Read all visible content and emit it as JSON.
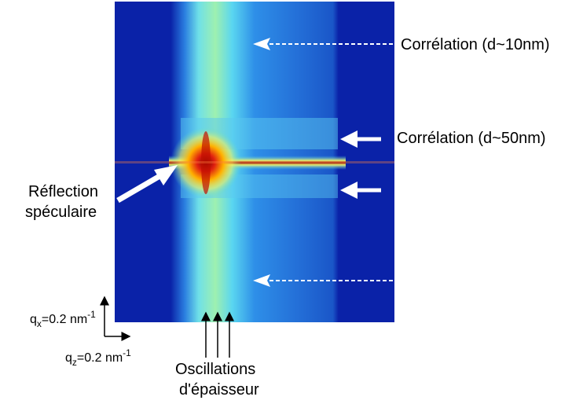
{
  "labels": {
    "correlation_10": "Corrélation (d~10nm)",
    "correlation_50": "Corrélation (d~50nm)",
    "specular": [
      "Réflection",
      "spéculaire"
    ],
    "oscillations": [
      "Oscillations",
      "d'épaisseur"
    ],
    "qx": {
      "symbol": "q",
      "subscript": "x",
      "value": "=0.2 nm",
      "exponent": "-1"
    },
    "qz": {
      "symbol": "q",
      "subscript": "z",
      "value": "=0.2 nm",
      "exponent": "-1"
    }
  }
}
